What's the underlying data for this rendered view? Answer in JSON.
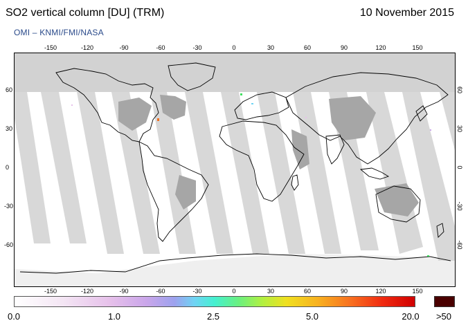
{
  "header": {
    "title": "SO2 vertical column [DU] (TRM)",
    "date": "10 November 2015",
    "credit": "OMI  –  KNMI/FMI/NASA"
  },
  "map": {
    "lon_ticks": [
      "-150",
      "-120",
      "-90",
      "-60",
      "-30",
      "0",
      "30",
      "60",
      "90",
      "120",
      "150"
    ],
    "lat_ticks": [
      "60",
      "30",
      "0",
      "-30",
      "-60"
    ],
    "colors": {
      "no_data_polar": "#d2d2d2",
      "land_gap": "#a6a6a6",
      "swath_gap": "#d8d8d8",
      "coastline": "#000000"
    }
  },
  "color_scale": {
    "labels": [
      "0.0",
      "1.0",
      "2.5",
      "5.0",
      "20.0"
    ],
    "over_label": ">50",
    "over_color": "#4a0000"
  }
}
